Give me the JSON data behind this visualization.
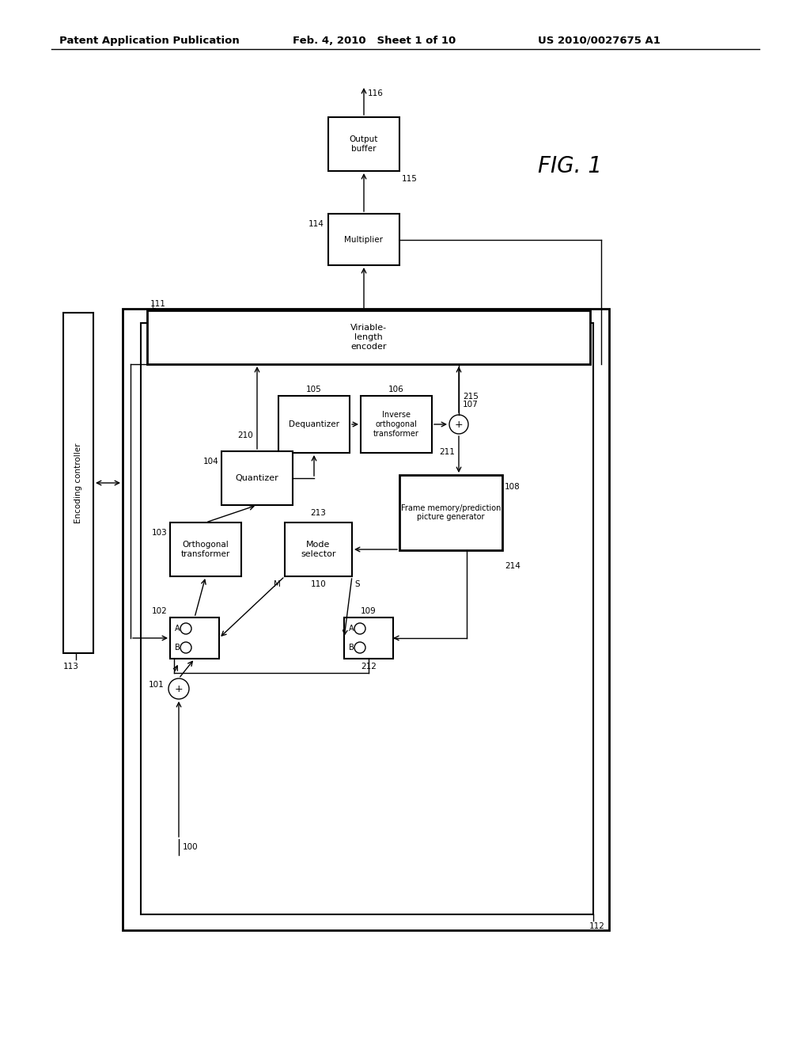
{
  "bg_color": "#ffffff",
  "header_left": "Patent Application Publication",
  "header_mid": "Feb. 4, 2010   Sheet 1 of 10",
  "header_right": "US 2010/0027675 A1"
}
